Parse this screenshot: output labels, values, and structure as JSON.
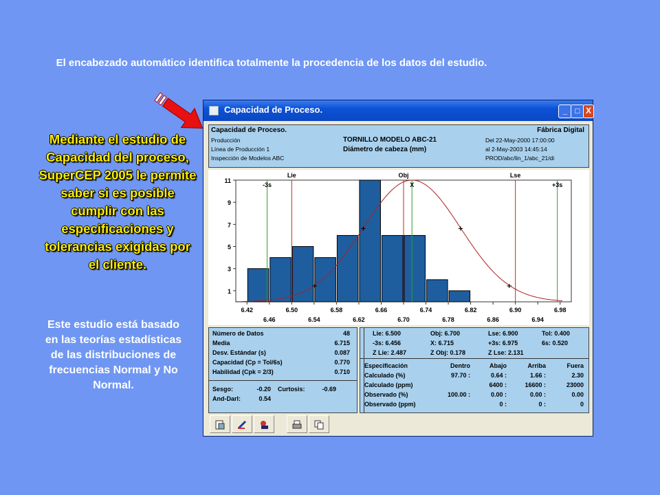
{
  "captions": {
    "top": "El encabezado automático identifica totalmente la procedencia de los datos del estudio.",
    "left_highlight": "Mediante el estudio de Capacidad del proceso, SuperCEP 2005 le permite saber si es posible cumplir con las especificaciones y tolerancias exigidas por el cliente.",
    "left_note": "Este estudio está basado en las teorías estadísticas de las distribuciones de frecuencias Normal y No Normal."
  },
  "window": {
    "title": "Capacidad de Proceso.",
    "buttons": {
      "minimize": "_",
      "maximize": "□",
      "close": "X"
    }
  },
  "header": {
    "title": "Capacidad de Proceso.",
    "company": "Fábrica Digital",
    "line1": "Producción",
    "line2": "Línea de Producción 1",
    "line3": "Inspección de Modelos ABC",
    "product": "TORNILLO MODELO ABC-21",
    "characteristic": "Diámetro de cabeza (mm)",
    "date_from": "Del  22-May-2000  17:00:00",
    "date_to": "al  2-May-2003  14:45:14",
    "path": "PROD/abc/lin_1/abc_21/di"
  },
  "chart_data": {
    "type": "bar",
    "categories": [
      "6.46",
      "6.50",
      "6.54",
      "6.58",
      "6.62",
      "6.66",
      "6.70",
      "6.74",
      "6.78",
      "6.82",
      "6.86",
      "6.90"
    ],
    "values": [
      3,
      4,
      5,
      4,
      6,
      11,
      6,
      6,
      2,
      1,
      0,
      0
    ],
    "bins": [
      6.44,
      6.48,
      6.52,
      6.56,
      6.6,
      6.64,
      6.68,
      6.72,
      6.76,
      6.8,
      6.84,
      6.88
    ],
    "xlim": [
      6.4,
      7.0
    ],
    "ylim": [
      0,
      11
    ],
    "y_ticks": [
      1,
      3,
      5,
      7,
      9,
      11
    ],
    "x_ticks_top_row": [
      "6.42",
      "6.50",
      "6.58",
      "6.66",
      "6.74",
      "6.82",
      "6.90",
      "6.98"
    ],
    "x_ticks_top_values": [
      6.42,
      6.5,
      6.58,
      6.66,
      6.74,
      6.82,
      6.9,
      6.98
    ],
    "x_ticks_bottom_row": [
      "6.46",
      "6.54",
      "6.62",
      "6.70",
      "6.78",
      "6.86",
      "6.94"
    ],
    "x_ticks_bottom_values": [
      6.46,
      6.54,
      6.62,
      6.7,
      6.78,
      6.86,
      6.94
    ],
    "lines": [
      {
        "label": "-3s",
        "x": 6.456,
        "color": "#2e9e2e",
        "position": "inside"
      },
      {
        "label": "Lie",
        "x": 6.5,
        "color": "#cc2222",
        "position": "top"
      },
      {
        "label": "Obj",
        "x": 6.7,
        "color": "#cc2222",
        "position": "top"
      },
      {
        "label": "X",
        "x": 6.715,
        "color": "#2e9e2e",
        "position": "inside"
      },
      {
        "label": "Lse",
        "x": 6.9,
        "color": "#cc2222",
        "position": "top"
      },
      {
        "label": "+3s",
        "x": 6.975,
        "color": "#2e9e2e",
        "position": "inside"
      }
    ],
    "normal_curve": {
      "mean": 6.715,
      "sd": 0.087,
      "peak": 11,
      "color": "#aa2222"
    },
    "bar_color": "#1f5e9e"
  },
  "stats_left": [
    {
      "label": "Número de Datos",
      "value": "48"
    },
    {
      "label": "Media",
      "value": "6.715"
    },
    {
      "label": "Desv. Estándar (s)",
      "value": "0.087"
    },
    {
      "label": "Capacidad (Cp = Tol/6s)",
      "value": "0.770"
    },
    {
      "label": "Habilidad (Cpk = 2/3)",
      "value": "0.710"
    }
  ],
  "shape": {
    "sesgo_label": "Sesgo:",
    "sesgo_value": "-0.20",
    "curtosis_label": "Curtosis:",
    "curtosis_value": "-0.69",
    "anddarl_label": "And-Darl:",
    "anddarl_value": "0.54"
  },
  "limits": {
    "row1": [
      "Lie: 6.500",
      "Obj: 6.700",
      "Lse: 6.900",
      "Tol: 0.400"
    ],
    "row2": [
      "-3s: 6.456",
      "X: 6.715",
      "+3s: 6.975",
      "6s: 0.520"
    ],
    "row3": [
      "Z Lie:  2.487",
      "Z Obj:  0.178",
      "Z Lse:  2.131"
    ]
  },
  "spec_table": {
    "headers": [
      "Especificación",
      "Dentro",
      "Abajo",
      "Arriba",
      "Fuera"
    ],
    "rows": [
      [
        "Calculado (%)",
        "97.70 :",
        "0.64 :",
        "1.66 :",
        "2.30"
      ],
      [
        "Calculado (ppm)",
        "",
        "6400 :",
        "16600 :",
        "23000"
      ],
      [
        "Observado (%)",
        "100.00 :",
        "0.00 :",
        "0.00 :",
        "0.00"
      ],
      [
        "Observado (ppm)",
        "",
        "0 :",
        "0 :",
        "0"
      ]
    ]
  },
  "toolbar": [
    "properties-icon",
    "edit-icon",
    "chart-tools-icon",
    "print-icon",
    "copy-icon"
  ]
}
